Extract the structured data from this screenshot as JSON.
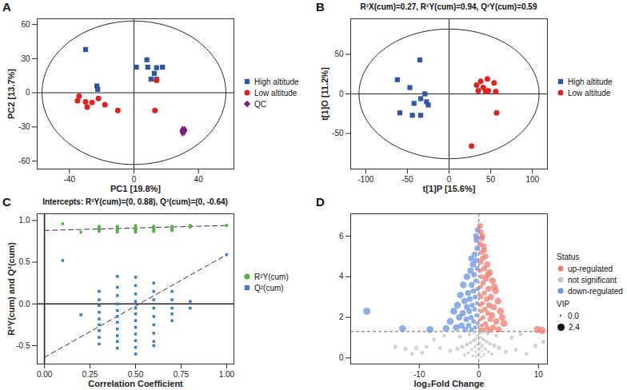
{
  "chart_data": [
    {
      "panel": "A",
      "type": "scatter",
      "x_label": "PC1 [19.8%]",
      "y_label": "PC2 [13.7%]",
      "xlim": [
        -60,
        62
      ],
      "ylim": [
        -67,
        65
      ],
      "xticks": [
        -40,
        0,
        40
      ],
      "yticks": [
        -60,
        -30,
        0,
        30,
        60
      ],
      "ellipse": {
        "cx": 0,
        "cy": 0,
        "rx": 57,
        "ry": 63
      },
      "ref_lines": {
        "x": [
          0
        ],
        "y": [
          0
        ],
        "line_style": "solid"
      },
      "legend": "right",
      "series": [
        {
          "name": "High altitude",
          "color": "#2d56a5",
          "marker": "square",
          "x": [
            -30,
            1.5,
            8,
            8.6,
            14,
            17.7,
            12.6,
            10.6,
            14,
            -23,
            -22.5
          ],
          "y": [
            38,
            22.5,
            29,
            22.5,
            22,
            22.5,
            17,
            12,
            12,
            6,
            3
          ]
        },
        {
          "name": "Low altitude",
          "color": "#e0211d",
          "marker": "circle",
          "x": [
            -35,
            -30,
            -26,
            -22,
            -18,
            -29,
            -34,
            -10,
            14,
            13
          ],
          "y": [
            -7,
            -8,
            -8.5,
            -5,
            -10.5,
            -12.5,
            -3,
            -15.5,
            11,
            -15.5
          ]
        },
        {
          "name": "QC",
          "color": "#7b1f7e",
          "marker": "diamond",
          "x": [
            30,
            31,
            30.5,
            31.5,
            30
          ],
          "y": [
            -33,
            -34,
            -33.5,
            -33,
            -34.5
          ]
        }
      ]
    },
    {
      "panel": "B",
      "type": "scatter",
      "title": "R²X(cum)=0.27, R²Y(cum)=0.94, Q²Y(cum)=0.59",
      "x_label": "t[1]P [15.6%]",
      "y_label": "t[1]O [11.2%]",
      "xlim": [
        -118,
        118
      ],
      "ylim": [
        -95,
        95
      ],
      "xticks": [
        -100,
        -50,
        0,
        50,
        100
      ],
      "yticks": [
        -50,
        0,
        50
      ],
      "ellipse": {
        "cx": 0,
        "cy": 0,
        "rx": 108,
        "ry": 82
      },
      "ref_lines": {
        "x": [
          0
        ],
        "y": [
          0
        ],
        "line_style": "solid"
      },
      "legend": "right",
      "series": [
        {
          "name": "High altitude",
          "color": "#2d56a5",
          "marker": "square",
          "x": [
            -35,
            -62,
            -34,
            -29,
            -42,
            -25,
            -59,
            -34,
            -44,
            -27,
            -47
          ],
          "y": [
            43,
            18,
            -6,
            0,
            -12,
            -14,
            -24,
            -27,
            -27,
            -10,
            8
          ]
        },
        {
          "name": "Low altitude",
          "color": "#e0211d",
          "marker": "circle",
          "x": [
            46,
            33,
            41,
            54,
            56,
            35,
            44,
            47,
            57,
            27,
            38
          ],
          "y": [
            19,
            11,
            8,
            14,
            3,
            4,
            3,
            4,
            -24,
            -66,
            16
          ]
        }
      ]
    },
    {
      "panel": "C",
      "type": "scatter",
      "title": "Intercepts: R²Y(cum)=(0, 0.88), Q²(cum)=(0, -0.64)",
      "x_label": "Correlation Coefficient",
      "y_label": "R²Y(cum) and Q²(cum)",
      "xlim": [
        -0.04,
        1.04
      ],
      "ylim": [
        -0.72,
        1.08
      ],
      "xticks": [
        {
          "value": 0,
          "label": "0.00"
        },
        {
          "value": 0.25,
          "label": "0.25"
        },
        {
          "value": 0.5,
          "label": "0.50"
        },
        {
          "value": 0.75,
          "label": "0.75"
        },
        {
          "value": 1,
          "label": "1.00"
        }
      ],
      "yticks": [
        -0.5,
        {
          "value": 0,
          "label": "0.0"
        },
        0.5,
        {
          "value": 1,
          "label": "1.0"
        }
      ],
      "ref_lines": {
        "x": [
          0
        ],
        "y": [
          0
        ],
        "line_style": "solid"
      },
      "legend": "right",
      "series": [
        {
          "name": "R²Y(cum)",
          "color": "#55b148",
          "marker": "circle",
          "x": [
            1.0,
            0.1,
            0.2,
            0.3,
            0.3,
            0.3,
            0.3,
            0.3,
            0.3,
            0.4,
            0.4,
            0.4,
            0.4,
            0.4,
            0.4,
            0.5,
            0.5,
            0.5,
            0.5,
            0.5,
            0.5,
            0.5,
            0.6,
            0.6,
            0.6,
            0.6,
            0.6,
            0.7,
            0.7,
            0.7,
            0.7,
            0.8,
            0.8
          ],
          "y": [
            0.94,
            0.96,
            0.86,
            0.93,
            0.91,
            0.9,
            0.89,
            0.88,
            0.87,
            0.93,
            0.91,
            0.9,
            0.89,
            0.88,
            0.86,
            0.94,
            0.92,
            0.91,
            0.9,
            0.89,
            0.87,
            0.86,
            0.93,
            0.91,
            0.9,
            0.89,
            0.87,
            0.93,
            0.91,
            0.89,
            0.88,
            0.94,
            0.92
          ],
          "fit": {
            "x": [
              0,
              1
            ],
            "y": [
              0.88,
              0.94
            ]
          }
        },
        {
          "name": "Q²(cum)",
          "color": "#3c7fc0",
          "marker": "square",
          "x": [
            1.0,
            0.1,
            0.2,
            0.3,
            0.3,
            0.3,
            0.3,
            0.3,
            0.3,
            0.3,
            0.3,
            0.3,
            0.4,
            0.4,
            0.4,
            0.4,
            0.4,
            0.4,
            0.4,
            0.4,
            0.4,
            0.4,
            0.4,
            0.5,
            0.5,
            0.5,
            0.5,
            0.5,
            0.5,
            0.5,
            0.5,
            0.5,
            0.5,
            0.5,
            0.5,
            0.6,
            0.6,
            0.6,
            0.6,
            0.6,
            0.6,
            0.6,
            0.6,
            0.6,
            0.7,
            0.7,
            0.7,
            0.7,
            0.7,
            0.8,
            0.8
          ],
          "y": [
            0.59,
            0.52,
            -0.13,
            0.15,
            0.05,
            -0.02,
            -0.1,
            -0.18,
            -0.25,
            -0.32,
            -0.4,
            -0.48,
            0.33,
            0.2,
            0.1,
            0.0,
            -0.08,
            -0.15,
            -0.22,
            -0.3,
            -0.38,
            -0.45,
            -0.53,
            0.32,
            0.22,
            0.12,
            0.03,
            -0.05,
            -0.12,
            -0.2,
            -0.28,
            -0.36,
            -0.44,
            -0.52,
            -0.6,
            0.25,
            0.15,
            0.05,
            -0.05,
            -0.15,
            -0.25,
            -0.35,
            -0.45,
            -0.5,
            0.15,
            0.05,
            -0.05,
            -0.12,
            -0.2,
            0.03,
            -0.05
          ],
          "fit": {
            "x": [
              0,
              1
            ],
            "y": [
              -0.64,
              0.59
            ]
          }
        }
      ]
    },
    {
      "panel": "D",
      "type": "scatter",
      "x_label": "log₂Fold Change",
      "xlim": [
        -21.5,
        11.5
      ],
      "ylim": [
        -0.3,
        7.1
      ],
      "xticks": [
        -10,
        0,
        10
      ],
      "yticks": [
        0,
        2,
        4,
        6
      ],
      "ref_lines": {
        "x": [
          0
        ],
        "y": [
          1.3
        ],
        "line_style": "dashed"
      },
      "legend": "right",
      "legend_title": "Status",
      "size_legend": {
        "title": "VIP",
        "ticks": [
          {
            "value": 0,
            "label": "0.0"
          },
          {
            "value": 2.4,
            "label": "2.4"
          }
        ]
      },
      "series": [
        {
          "name": "not significant",
          "color": "#c4c4c4",
          "marker": "circle",
          "x": [
            0.1,
            -0.2,
            0.4,
            -0.5,
            0.8,
            -0.9,
            1.3,
            -1.4,
            0.2,
            -0.3,
            1.9,
            -2.0,
            0.6,
            -0.7,
            2.6,
            -2.8,
            0.3,
            -0.1,
            1.1,
            -1.2,
            3.4,
            -3.6,
            0.5,
            -0.6,
            1.6,
            -1.8,
            0.1,
            -0.3,
            0.9,
            -1.0,
            2.2,
            -2.4,
            0.4,
            -0.5,
            4.5,
            -4.8,
            -6.5,
            -8.8,
            -10.5,
            -12.3,
            -14.0,
            -11.2,
            -9.5,
            6.2,
            8.0,
            9.5,
            10.8,
            5.5,
            -5.8,
            -7.5,
            7.0,
            2.9,
            -3.2,
            1.5,
            -1.6,
            0.7,
            -0.8
          ],
          "y": [
            1.2,
            1.1,
            1.0,
            0.95,
            0.9,
            0.85,
            0.8,
            0.75,
            0.7,
            0.65,
            0.7,
            0.65,
            0.6,
            0.55,
            0.6,
            0.55,
            0.5,
            0.45,
            0.45,
            0.4,
            0.5,
            0.45,
            0.35,
            0.3,
            0.3,
            0.25,
            0.2,
            0.15,
            0.15,
            0.1,
            0.2,
            0.15,
            0.05,
            0.05,
            0.3,
            0.35,
            0.5,
            0.55,
            0.5,
            0.45,
            0.55,
            0.2,
            0.25,
            0.4,
            0.2,
            0.6,
            0.8,
            1.0,
            1.1,
            0.9,
            1.15,
            1.1,
            1.05,
            1.2,
            1.15,
            1.25,
            1.25
          ],
          "vip": [
            0.6,
            0.6,
            0.7,
            0.7,
            0.8,
            0.8,
            0.9,
            0.9,
            0.5,
            0.5,
            1.0,
            1.0,
            0.6,
            0.6,
            1.1,
            1.1,
            0.4,
            0.4,
            0.7,
            0.7,
            1.1,
            1.1,
            0.4,
            0.4,
            0.7,
            0.7,
            0.3,
            0.3,
            0.5,
            0.5,
            0.8,
            0.8,
            0.3,
            0.3,
            1.0,
            1.0,
            1.0,
            1.0,
            1.1,
            1.1,
            1.1,
            1.0,
            1.0,
            1.0,
            1.0,
            1.1,
            1.1,
            1.0,
            1.0,
            1.0,
            1.0,
            1.0,
            1.0,
            0.9,
            0.9,
            0.7,
            0.7
          ]
        },
        {
          "name": "down-regulated",
          "color": "#6a93e0",
          "marker": "circle",
          "x": [
            -0.2,
            -0.4,
            -0.3,
            -0.7,
            -0.5,
            -1.0,
            -0.3,
            -1.4,
            -0.8,
            -2.0,
            -0.5,
            -1.2,
            -2.6,
            -0.2,
            -0.9,
            -1.8,
            -3.1,
            -0.6,
            -1.5,
            -2.4,
            -0.3,
            -1.1,
            -3.6,
            -2.0,
            -0.7,
            -1.6,
            -4.2,
            -2.7,
            -0.4,
            -1.3,
            -3.3,
            -2.1,
            -0.9,
            -0.2,
            -4.8,
            -1.7,
            -2.9,
            -0.6,
            -1.2,
            -3.8,
            -2.3,
            -5.5,
            -8.2,
            -12.8,
            -18.8,
            -0.5,
            -1.3
          ],
          "y": [
            6.3,
            5.8,
            5.4,
            5.1,
            4.8,
            4.6,
            4.4,
            4.3,
            4.1,
            4.0,
            3.8,
            3.6,
            3.6,
            3.4,
            3.3,
            3.2,
            3.1,
            3.0,
            2.9,
            2.8,
            2.7,
            2.6,
            2.6,
            2.5,
            2.4,
            2.3,
            2.3,
            2.2,
            2.1,
            2.0,
            2.0,
            1.9,
            1.8,
            1.7,
            1.8,
            1.6,
            1.6,
            1.5,
            1.4,
            1.5,
            1.4,
            1.45,
            1.4,
            1.45,
            2.3,
            6.0,
            4.9
          ],
          "vip": [
            1.7,
            1.7,
            1.6,
            1.8,
            1.6,
            1.9,
            1.4,
            2.0,
            1.7,
            2.1,
            1.4,
            1.8,
            2.2,
            1.2,
            1.6,
            1.9,
            2.2,
            1.4,
            1.8,
            2.0,
            1.1,
            1.5,
            2.3,
            1.9,
            1.3,
            1.7,
            2.3,
            2.0,
            1.1,
            1.5,
            2.1,
            1.8,
            1.3,
            1.0,
            2.3,
            1.6,
            1.9,
            1.1,
            1.3,
            2.1,
            1.7,
            2.2,
            2.3,
            2.3,
            2.4,
            1.7,
            1.8
          ]
        },
        {
          "name": "up-regulated",
          "color": "#f27b72",
          "marker": "circle",
          "x": [
            0.2,
            0.3,
            0.5,
            0.2,
            0.8,
            0.4,
            1.1,
            0.6,
            0.3,
            1.4,
            0.9,
            0.2,
            1.8,
            0.5,
            1.2,
            2.3,
            0.7,
            0.3,
            1.6,
            2.8,
            0.9,
            0.4,
            2.0,
            1.3,
            3.2,
            0.6,
            0.2,
            1.7,
            2.5,
            1.0,
            0.4,
            3.6,
            1.5,
            2.2,
            0.7,
            0.3,
            1.9,
            2.9,
            1.1,
            0.5,
            4.2,
            1.4,
            2.4,
            0.8,
            0.2,
            3.3,
            1.8,
            9.8,
            10.6,
            0.6,
            0.9,
            1.5,
            2.6,
            0.1,
            3.9
          ],
          "y": [
            6.5,
            6.2,
            5.9,
            5.6,
            5.5,
            5.2,
            5.0,
            4.9,
            4.7,
            4.6,
            4.4,
            4.3,
            4.2,
            4.0,
            3.9,
            3.8,
            3.7,
            3.5,
            3.4,
            3.3,
            3.2,
            3.0,
            3.0,
            2.9,
            2.8,
            2.7,
            2.6,
            2.6,
            2.5,
            2.4,
            2.3,
            2.3,
            2.2,
            2.1,
            2.0,
            1.9,
            1.9,
            1.8,
            1.7,
            1.6,
            1.7,
            1.5,
            1.5,
            1.4,
            1.4,
            1.4,
            1.35,
            1.4,
            1.35,
            6.0,
            5.3,
            4.1,
            3.5,
            3.1,
            2.0
          ],
          "vip": [
            1.8,
            1.7,
            1.8,
            1.6,
            1.9,
            1.5,
            1.8,
            1.6,
            1.4,
            2.0,
            1.7,
            1.3,
            2.1,
            1.5,
            1.8,
            2.2,
            1.5,
            1.2,
            1.9,
            2.2,
            1.5,
            1.2,
            2.0,
            1.7,
            2.3,
            1.3,
            1.1,
            1.8,
            2.0,
            1.5,
            1.1,
            2.3,
            1.6,
            1.9,
            1.3,
            1.0,
            1.7,
            2.0,
            1.4,
            1.1,
            2.3,
            1.4,
            1.8,
            1.2,
            0.9,
            2.0,
            1.5,
            2.4,
            2.4,
            1.6,
            1.7,
            1.9,
            2.1,
            1.0,
            2.2
          ]
        }
      ]
    }
  ]
}
